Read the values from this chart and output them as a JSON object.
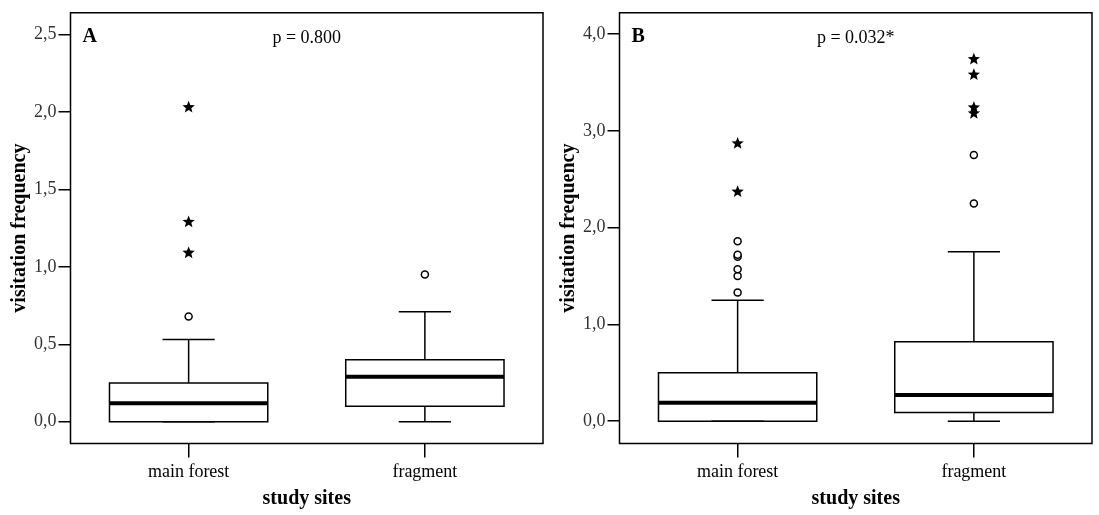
{
  "chart_data": [
    {
      "type": "box",
      "title": "A",
      "annotations": [
        "p = 0.800"
      ],
      "xlabel": "study sites",
      "ylabel": "visitation frequency",
      "categories": [
        "main forest",
        "fragment"
      ],
      "ylim": [
        -0.14,
        2.64
      ],
      "yticks": [
        {
          "value": 0,
          "label": "0,0"
        },
        {
          "value": 0.5,
          "label": "0,5"
        },
        {
          "value": 1,
          "label": "1,0"
        },
        {
          "value": 1.5,
          "label": "1,5"
        },
        {
          "value": 2,
          "label": "2,0"
        },
        {
          "value": 2.5,
          "label": "2,5"
        }
      ],
      "grid": false,
      "legend": false,
      "series": [
        {
          "type": "box",
          "color": "#000000",
          "boxes": [
            {
              "low": 0,
              "q1": 0,
              "median": 0.12,
              "q3": 0.25,
              "high": 0.53,
              "outliers": [
                0.68
              ]
            },
            {
              "low": 0,
              "q1": 0.1,
              "median": 0.29,
              "q3": 0.4,
              "high": 0.71,
              "outliers": [
                0.95
              ]
            }
          ]
        },
        {
          "type": "scatter",
          "marker": "star",
          "color": "#000000",
          "x": [
            "main forest",
            "main forest",
            "main forest"
          ],
          "values": [
            2.03,
            1.29,
            1.09
          ]
        }
      ]
    },
    {
      "type": "box",
      "title": "B",
      "annotations": [
        "p = 0.032*"
      ],
      "xlabel": "study sites",
      "ylabel": "visitation frequency",
      "categories": [
        "main forest",
        "fragment"
      ],
      "ylim": [
        -0.23,
        4.22
      ],
      "yticks": [
        {
          "value": 0,
          "label": "0,0"
        },
        {
          "value": 1,
          "label": "1,0"
        },
        {
          "value": 2,
          "label": "2,0"
        },
        {
          "value": 3,
          "label": "3,0"
        },
        {
          "value": 4,
          "label": "4,0"
        }
      ],
      "grid": false,
      "legend": false,
      "series": [
        {
          "type": "box",
          "color": "#000000",
          "boxes": [
            {
              "low": 0,
              "q1": 0,
              "median": 0.19,
              "q3": 0.5,
              "high": 1.25,
              "outliers": [
                1.33,
                1.5,
                1.57,
                1.7,
                1.72,
                1.86
              ]
            },
            {
              "low": 0,
              "q1": 0.09,
              "median": 0.27,
              "q3": 0.82,
              "high": 1.75,
              "outliers": [
                2.25,
                2.75
              ]
            }
          ]
        },
        {
          "type": "scatter",
          "marker": "star",
          "color": "#000000",
          "x": [
            "main forest",
            "main forest",
            "fragment",
            "fragment",
            "fragment",
            "fragment"
          ],
          "values": [
            2.87,
            2.37,
            3.74,
            3.58,
            3.24,
            3.18
          ]
        }
      ]
    }
  ]
}
